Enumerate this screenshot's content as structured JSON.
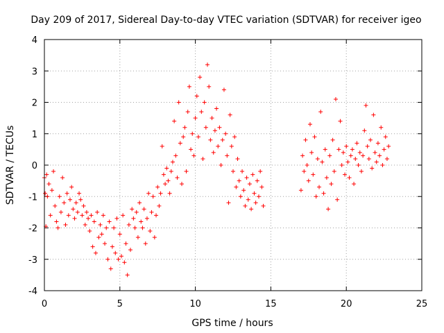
{
  "chart_data": {
    "type": "scatter",
    "title": "Day 209 of 2017, Sidereal Day-to-day VTEC variation (SDTVAR) for receiver igeo",
    "xlabel": "GPS time / hours",
    "ylabel": "SDTVAR / TECUs",
    "xlim": [
      0,
      25
    ],
    "ylim": [
      -4,
      4
    ],
    "xticks": [
      0,
      5,
      10,
      15,
      20,
      25
    ],
    "yticks": [
      -4,
      -3,
      -2,
      -1,
      0,
      1,
      2,
      3,
      4
    ],
    "grid": true,
    "marker": "+",
    "color": "#ff0000",
    "series": [
      {
        "name": "SDTVAR",
        "points": [
          [
            0.0,
            -0.4
          ],
          [
            0.05,
            -0.9
          ],
          [
            0.1,
            -1.95
          ],
          [
            0.15,
            -0.3
          ],
          [
            0.2,
            -1.0
          ],
          [
            0.3,
            -0.6
          ],
          [
            0.4,
            -1.6
          ],
          [
            0.5,
            -0.8
          ],
          [
            0.6,
            -0.2
          ],
          [
            0.7,
            -1.3
          ],
          [
            0.8,
            -1.8
          ],
          [
            0.9,
            -2.0
          ],
          [
            1.0,
            -1.0
          ],
          [
            1.1,
            -1.5
          ],
          [
            1.2,
            -0.4
          ],
          [
            1.3,
            -1.2
          ],
          [
            1.4,
            -1.9
          ],
          [
            1.5,
            -0.9
          ],
          [
            1.6,
            -1.6
          ],
          [
            1.7,
            -1.1
          ],
          [
            1.8,
            -0.7
          ],
          [
            1.9,
            -1.4
          ],
          [
            2.0,
            -1.7
          ],
          [
            2.1,
            -1.2
          ],
          [
            2.2,
            -1.5
          ],
          [
            2.3,
            -0.9
          ],
          [
            2.4,
            -1.1
          ],
          [
            2.5,
            -1.6
          ],
          [
            2.6,
            -1.3
          ],
          [
            2.7,
            -1.9
          ],
          [
            2.8,
            -1.5
          ],
          [
            2.9,
            -1.7
          ],
          [
            3.0,
            -2.1
          ],
          [
            3.1,
            -1.6
          ],
          [
            3.2,
            -2.6
          ],
          [
            3.3,
            -1.8
          ],
          [
            3.4,
            -2.8
          ],
          [
            3.5,
            -1.5
          ],
          [
            3.6,
            -2.3
          ],
          [
            3.7,
            -1.9
          ],
          [
            3.8,
            -2.2
          ],
          [
            3.9,
            -1.6
          ],
          [
            4.0,
            -2.5
          ],
          [
            4.1,
            -2.0
          ],
          [
            4.2,
            -3.0
          ],
          [
            4.3,
            -1.8
          ],
          [
            4.4,
            -3.3
          ],
          [
            4.5,
            -2.6
          ],
          [
            4.6,
            -2.0
          ],
          [
            4.7,
            -2.8
          ],
          [
            4.8,
            -1.7
          ],
          [
            4.9,
            -3.0
          ],
          [
            5.0,
            -2.2
          ],
          [
            5.1,
            -2.9
          ],
          [
            5.2,
            -1.6
          ],
          [
            5.3,
            -3.1
          ],
          [
            5.4,
            -2.5
          ],
          [
            5.5,
            -3.5
          ],
          [
            5.6,
            -1.9
          ],
          [
            5.7,
            -2.7
          ],
          [
            5.8,
            -1.4
          ],
          [
            5.9,
            -1.7
          ],
          [
            6.0,
            -2.0
          ],
          [
            6.1,
            -1.5
          ],
          [
            6.2,
            -2.3
          ],
          [
            6.3,
            -1.2
          ],
          [
            6.4,
            -1.8
          ],
          [
            6.5,
            -2.0
          ],
          [
            6.6,
            -1.4
          ],
          [
            6.7,
            -2.5
          ],
          [
            6.8,
            -1.7
          ],
          [
            6.9,
            -0.9
          ],
          [
            7.0,
            -2.1
          ],
          [
            7.1,
            -1.5
          ],
          [
            7.2,
            -1.0
          ],
          [
            7.3,
            -2.3
          ],
          [
            7.4,
            -1.6
          ],
          [
            7.5,
            -0.7
          ],
          [
            7.6,
            -1.3
          ],
          [
            7.7,
            -0.9
          ],
          [
            7.8,
            0.6
          ],
          [
            7.9,
            -0.3
          ],
          [
            8.0,
            -0.6
          ],
          [
            8.1,
            -0.1
          ],
          [
            8.2,
            -0.5
          ],
          [
            8.3,
            -0.9
          ],
          [
            8.4,
            -0.2
          ],
          [
            8.5,
            0.1
          ],
          [
            8.6,
            1.4
          ],
          [
            8.7,
            0.3
          ],
          [
            8.8,
            -0.4
          ],
          [
            8.9,
            2.0
          ],
          [
            9.0,
            0.7
          ],
          [
            9.1,
            -0.6
          ],
          [
            9.2,
            0.9
          ],
          [
            9.3,
            1.2
          ],
          [
            9.4,
            -0.2
          ],
          [
            9.5,
            1.7
          ],
          [
            9.6,
            2.5
          ],
          [
            9.7,
            0.5
          ],
          [
            9.8,
            1.0
          ],
          [
            9.9,
            0.3
          ],
          [
            10.0,
            1.5
          ],
          [
            10.1,
            2.2
          ],
          [
            10.2,
            0.9
          ],
          [
            10.3,
            2.8
          ],
          [
            10.4,
            1.7
          ],
          [
            10.5,
            0.2
          ],
          [
            10.6,
            2.0
          ],
          [
            10.7,
            1.2
          ],
          [
            10.8,
            3.2
          ],
          [
            10.9,
            2.5
          ],
          [
            11.0,
            0.8
          ],
          [
            11.1,
            1.5
          ],
          [
            11.2,
            0.4
          ],
          [
            11.3,
            1.1
          ],
          [
            11.4,
            1.8
          ],
          [
            11.5,
            0.6
          ],
          [
            11.6,
            1.2
          ],
          [
            11.7,
            0.0
          ],
          [
            11.8,
            0.8
          ],
          [
            11.9,
            2.4
          ],
          [
            12.0,
            1.0
          ],
          [
            12.1,
            0.3
          ],
          [
            12.2,
            -1.2
          ],
          [
            12.3,
            1.6
          ],
          [
            12.4,
            0.6
          ],
          [
            12.5,
            -0.2
          ],
          [
            12.6,
            0.9
          ],
          [
            12.7,
            -0.7
          ],
          [
            12.8,
            0.2
          ],
          [
            12.9,
            -0.5
          ],
          [
            13.0,
            -1.0
          ],
          [
            13.1,
            -0.2
          ],
          [
            13.2,
            -0.8
          ],
          [
            13.3,
            -1.3
          ],
          [
            13.4,
            -0.4
          ],
          [
            13.5,
            -1.1
          ],
          [
            13.6,
            -0.6
          ],
          [
            13.7,
            -1.4
          ],
          [
            13.8,
            -0.3
          ],
          [
            13.9,
            -0.9
          ],
          [
            14.0,
            -1.2
          ],
          [
            14.1,
            -0.5
          ],
          [
            14.2,
            -1.0
          ],
          [
            14.3,
            -0.2
          ],
          [
            14.4,
            -0.7
          ],
          [
            14.5,
            -1.3
          ],
          [
            17.0,
            -0.8
          ],
          [
            17.1,
            0.3
          ],
          [
            17.2,
            -0.2
          ],
          [
            17.3,
            0.8
          ],
          [
            17.4,
            0.0
          ],
          [
            17.5,
            -0.5
          ],
          [
            17.6,
            1.3
          ],
          [
            17.7,
            0.4
          ],
          [
            17.8,
            -0.3
          ],
          [
            17.9,
            0.9
          ],
          [
            18.0,
            -1.0
          ],
          [
            18.1,
            0.2
          ],
          [
            18.2,
            -0.7
          ],
          [
            18.3,
            1.7
          ],
          [
            18.4,
            0.1
          ],
          [
            18.5,
            -0.9
          ],
          [
            18.6,
            0.5
          ],
          [
            18.7,
            -0.4
          ],
          [
            18.8,
            -1.4
          ],
          [
            18.9,
            0.3
          ],
          [
            19.0,
            -0.6
          ],
          [
            19.1,
            0.8
          ],
          [
            19.2,
            -0.2
          ],
          [
            19.3,
            2.1
          ],
          [
            19.4,
            -1.1
          ],
          [
            19.5,
            0.5
          ],
          [
            19.6,
            1.4
          ],
          [
            19.7,
            0.0
          ],
          [
            19.8,
            0.4
          ],
          [
            19.9,
            -0.3
          ],
          [
            20.0,
            0.6
          ],
          [
            20.1,
            0.1
          ],
          [
            20.2,
            -0.4
          ],
          [
            20.3,
            0.3
          ],
          [
            20.4,
            0.5
          ],
          [
            20.5,
            -0.6
          ],
          [
            20.6,
            0.2
          ],
          [
            20.7,
            0.7
          ],
          [
            20.8,
            0.0
          ],
          [
            20.9,
            0.4
          ],
          [
            21.0,
            -0.2
          ],
          [
            21.1,
            0.3
          ],
          [
            21.2,
            1.1
          ],
          [
            21.3,
            1.9
          ],
          [
            21.4,
            0.6
          ],
          [
            21.5,
            0.2
          ],
          [
            21.6,
            0.8
          ],
          [
            21.7,
            -0.1
          ],
          [
            21.8,
            1.6
          ],
          [
            21.9,
            0.4
          ],
          [
            22.0,
            0.1
          ],
          [
            22.1,
            0.7
          ],
          [
            22.2,
            0.3
          ],
          [
            22.3,
            1.2
          ],
          [
            22.4,
            0.0
          ],
          [
            22.5,
            0.5
          ],
          [
            22.6,
            0.9
          ],
          [
            22.7,
            0.2
          ],
          [
            22.8,
            0.6
          ]
        ]
      }
    ]
  }
}
